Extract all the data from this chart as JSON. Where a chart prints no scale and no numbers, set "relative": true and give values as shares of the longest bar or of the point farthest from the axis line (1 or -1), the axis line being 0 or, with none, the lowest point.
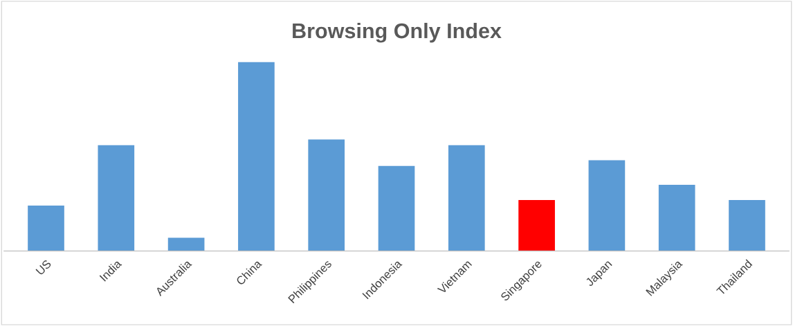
{
  "chart_data": {
    "type": "bar",
    "title": "Browsing Only Index",
    "relative": true,
    "categories": [
      "US",
      "India",
      "Australia",
      "China",
      "Philippines",
      "Indonesia",
      "Vietnam",
      "Singapore",
      "Japan",
      "Malaysia",
      "Thailand"
    ],
    "values": [
      0.24,
      0.56,
      0.07,
      1,
      0.59,
      0.45,
      0.56,
      0.27,
      0.48,
      0.35,
      0.27
    ],
    "colors": [
      "#5b9bd5",
      "#5b9bd5",
      "#5b9bd5",
      "#5b9bd5",
      "#5b9bd5",
      "#5b9bd5",
      "#5b9bd5",
      "#ff0000",
      "#5b9bd5",
      "#5b9bd5",
      "#5b9bd5"
    ],
    "grid": false,
    "legend": false
  }
}
